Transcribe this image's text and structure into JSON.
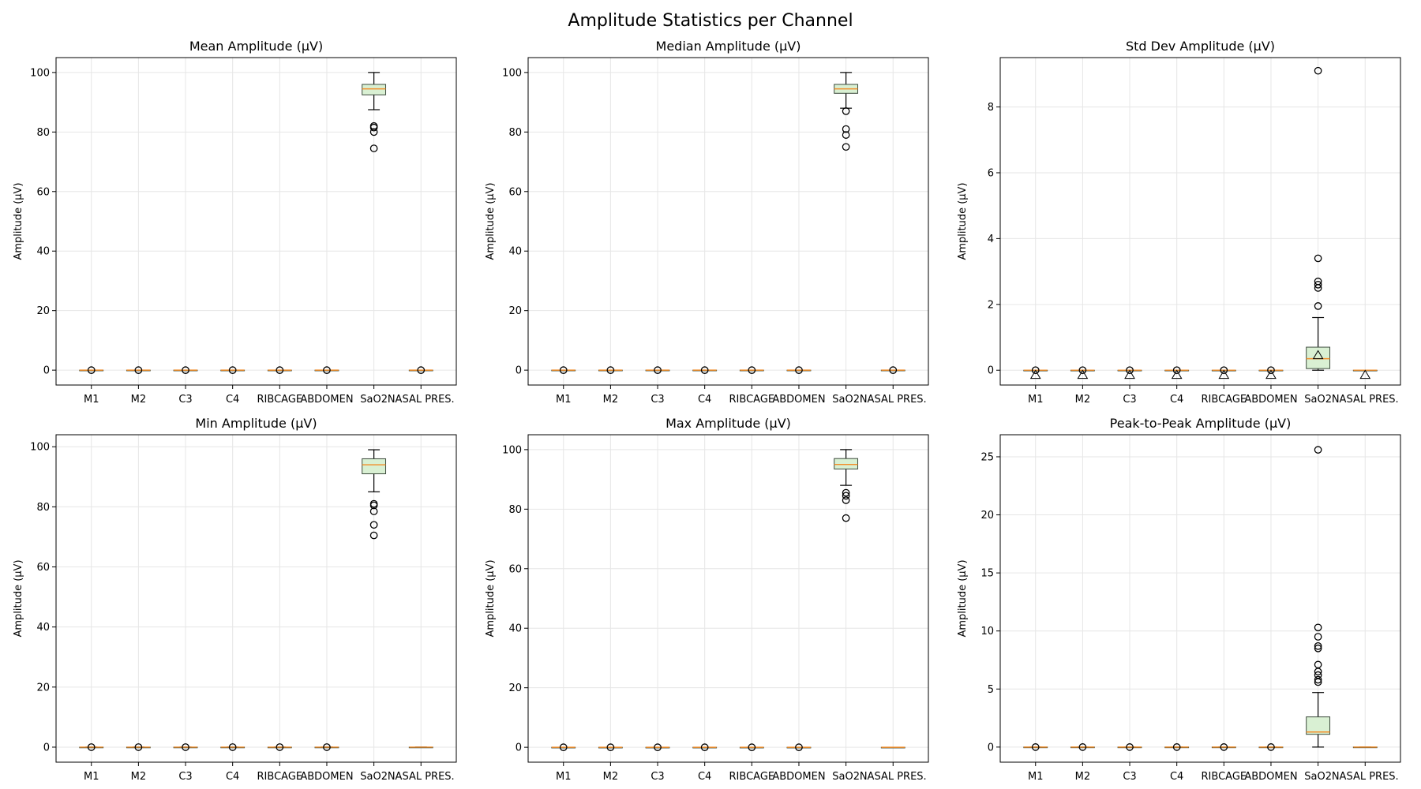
{
  "figure_title": "Amplitude Statistics per Channel",
  "colors": {
    "box_fill": "#d9f0d3",
    "box_edge": "#3b4a3b",
    "median": "#f28e2b",
    "grid": "#e6e6e6",
    "whisker": "#000000"
  },
  "chart_data": [
    {
      "type": "box",
      "title": "Mean Amplitude (µV)",
      "ylabel": "Amplitude (µV)",
      "ylim": [
        -5,
        105
      ],
      "yticks": [
        0,
        20,
        40,
        60,
        80,
        100
      ],
      "ytick_labels": [
        "0",
        "20",
        "40",
        "60",
        "80",
        "100"
      ],
      "categories": [
        "M1",
        "M2",
        "C3",
        "C4",
        "RIBCAGE",
        "ABDOMEN",
        "SaO2",
        "NASAL PRES."
      ],
      "boxes": [
        {
          "q1": 0,
          "median": 0,
          "q3": 0,
          "whislo": 0,
          "whishi": 0,
          "fliers": [
            0
          ]
        },
        {
          "q1": 0,
          "median": 0,
          "q3": 0,
          "whislo": 0,
          "whishi": 0,
          "fliers": [
            0
          ]
        },
        {
          "q1": 0,
          "median": 0,
          "q3": 0,
          "whislo": 0,
          "whishi": 0,
          "fliers": [
            0
          ]
        },
        {
          "q1": 0,
          "median": 0,
          "q3": 0,
          "whislo": 0,
          "whishi": 0,
          "fliers": [
            0
          ]
        },
        {
          "q1": 0,
          "median": 0,
          "q3": 0,
          "whislo": 0,
          "whishi": 0,
          "fliers": [
            0
          ]
        },
        {
          "q1": 0,
          "median": 0,
          "q3": 0,
          "whislo": 0,
          "whishi": 0,
          "fliers": [
            0
          ]
        },
        {
          "q1": 92.5,
          "median": 94.5,
          "q3": 96,
          "whislo": 87.5,
          "whishi": 100,
          "fliers": [
            82,
            81.5,
            80,
            74.5
          ]
        },
        {
          "q1": 0,
          "median": 0,
          "q3": 0,
          "whislo": 0,
          "whishi": 0,
          "fliers": [
            0
          ]
        }
      ]
    },
    {
      "type": "box",
      "title": "Median Amplitude (µV)",
      "ylabel": "Amplitude (µV)",
      "ylim": [
        -5,
        105
      ],
      "yticks": [
        0,
        20,
        40,
        60,
        80,
        100
      ],
      "ytick_labels": [
        "0",
        "20",
        "40",
        "60",
        "80",
        "100"
      ],
      "categories": [
        "M1",
        "M2",
        "C3",
        "C4",
        "RIBCAGE",
        "ABDOMEN",
        "SaO2",
        "NASAL PRES."
      ],
      "boxes": [
        {
          "q1": 0,
          "median": 0,
          "q3": 0,
          "whislo": 0,
          "whishi": 0,
          "fliers": [
            0
          ]
        },
        {
          "q1": 0,
          "median": 0,
          "q3": 0,
          "whislo": 0,
          "whishi": 0,
          "fliers": [
            0
          ]
        },
        {
          "q1": 0,
          "median": 0,
          "q3": 0,
          "whislo": 0,
          "whishi": 0,
          "fliers": [
            0
          ]
        },
        {
          "q1": 0,
          "median": 0,
          "q3": 0,
          "whislo": 0,
          "whishi": 0,
          "fliers": [
            0
          ]
        },
        {
          "q1": 0,
          "median": 0,
          "q3": 0,
          "whislo": 0,
          "whishi": 0,
          "fliers": [
            0
          ]
        },
        {
          "q1": 0,
          "median": 0,
          "q3": 0,
          "whislo": 0,
          "whishi": 0,
          "fliers": [
            0
          ]
        },
        {
          "q1": 93,
          "median": 94.5,
          "q3": 96,
          "whislo": 88,
          "whishi": 100,
          "fliers": [
            87,
            81,
            79,
            75
          ]
        },
        {
          "q1": 0,
          "median": 0,
          "q3": 0,
          "whislo": 0,
          "whishi": 0,
          "fliers": [
            0
          ]
        }
      ]
    },
    {
      "type": "box",
      "title": "Std Dev Amplitude (µV)",
      "ylabel": "Amplitude (µV)",
      "ylim": [
        -0.45,
        9.5
      ],
      "yticks": [
        0,
        2,
        4,
        6,
        8
      ],
      "ytick_labels": [
        "0",
        "2",
        "4",
        "6",
        "8"
      ],
      "categories": [
        "M1",
        "M2",
        "C3",
        "C4",
        "RIBCAGE",
        "ABDOMEN",
        "SaO2",
        "NASAL PRES."
      ],
      "boxes": [
        {
          "q1": 0,
          "median": 0,
          "q3": 0,
          "whislo": 0,
          "whishi": 0,
          "fliers": [
            0
          ],
          "mean": -0.15
        },
        {
          "q1": 0,
          "median": 0,
          "q3": 0,
          "whislo": 0,
          "whishi": 0,
          "fliers": [
            0
          ],
          "mean": -0.15
        },
        {
          "q1": 0,
          "median": 0,
          "q3": 0,
          "whislo": 0,
          "whishi": 0,
          "fliers": [
            0
          ],
          "mean": -0.15
        },
        {
          "q1": 0,
          "median": 0,
          "q3": 0,
          "whislo": 0,
          "whishi": 0,
          "fliers": [
            0
          ],
          "mean": -0.15
        },
        {
          "q1": 0,
          "median": 0,
          "q3": 0,
          "whislo": 0,
          "whishi": 0,
          "fliers": [
            0
          ],
          "mean": -0.15
        },
        {
          "q1": 0,
          "median": 0,
          "q3": 0,
          "whislo": 0,
          "whishi": 0,
          "fliers": [
            0
          ],
          "mean": -0.15
        },
        {
          "q1": 0.05,
          "median": 0.35,
          "q3": 0.7,
          "whislo": 0,
          "whishi": 1.6,
          "fliers": [
            9.1,
            3.4,
            2.7,
            2.6,
            2.5,
            1.95
          ],
          "mean": 0.45
        },
        {
          "q1": 0,
          "median": 0,
          "q3": 0,
          "whislo": 0,
          "whishi": 0,
          "fliers": [],
          "mean": -0.15
        }
      ]
    },
    {
      "type": "box",
      "title": "Min Amplitude (µV)",
      "ylabel": "Amplitude (µV)",
      "ylim": [
        -5,
        104
      ],
      "yticks": [
        0,
        20,
        40,
        60,
        80,
        100
      ],
      "ytick_labels": [
        "0",
        "20",
        "40",
        "60",
        "80",
        "100"
      ],
      "categories": [
        "M1",
        "M2",
        "C3",
        "C4",
        "RIBCAGE",
        "ABDOMEN",
        "SaO2",
        "NASAL PRES."
      ],
      "boxes": [
        {
          "q1": 0,
          "median": 0,
          "q3": 0,
          "whislo": 0,
          "whishi": 0,
          "fliers": [
            0
          ]
        },
        {
          "q1": 0,
          "median": 0,
          "q3": 0,
          "whislo": 0,
          "whishi": 0,
          "fliers": [
            0
          ]
        },
        {
          "q1": 0,
          "median": 0,
          "q3": 0,
          "whislo": 0,
          "whishi": 0,
          "fliers": [
            0
          ]
        },
        {
          "q1": 0,
          "median": 0,
          "q3": 0,
          "whislo": 0,
          "whishi": 0,
          "fliers": [
            0
          ]
        },
        {
          "q1": 0,
          "median": 0,
          "q3": 0,
          "whislo": 0,
          "whishi": 0,
          "fliers": [
            0
          ]
        },
        {
          "q1": 0,
          "median": 0,
          "q3": 0,
          "whislo": 0,
          "whishi": 0,
          "fliers": [
            0
          ]
        },
        {
          "q1": 91,
          "median": 94,
          "q3": 96,
          "whislo": 85,
          "whishi": 99,
          "fliers": [
            81,
            80.5,
            78.5,
            74,
            70.5
          ]
        },
        {
          "q1": 0,
          "median": 0,
          "q3": 0,
          "whislo": 0,
          "whishi": 0,
          "fliers": []
        }
      ]
    },
    {
      "type": "box",
      "title": "Max Amplitude (µV)",
      "ylabel": "Amplitude (µV)",
      "ylim": [
        -5,
        105
      ],
      "yticks": [
        0,
        20,
        40,
        60,
        80,
        100
      ],
      "ytick_labels": [
        "0",
        "20",
        "40",
        "60",
        "80",
        "100"
      ],
      "categories": [
        "M1",
        "M2",
        "C3",
        "C4",
        "RIBCAGE",
        "ABDOMEN",
        "SaO2",
        "NASAL PRES."
      ],
      "boxes": [
        {
          "q1": 0,
          "median": 0,
          "q3": 0,
          "whislo": 0,
          "whishi": 0,
          "fliers": [
            0
          ]
        },
        {
          "q1": 0,
          "median": 0,
          "q3": 0,
          "whislo": 0,
          "whishi": 0,
          "fliers": [
            0
          ]
        },
        {
          "q1": 0,
          "median": 0,
          "q3": 0,
          "whislo": 0,
          "whishi": 0,
          "fliers": [
            0
          ]
        },
        {
          "q1": 0,
          "median": 0,
          "q3": 0,
          "whislo": 0,
          "whishi": 0,
          "fliers": [
            0
          ]
        },
        {
          "q1": 0,
          "median": 0,
          "q3": 0,
          "whislo": 0,
          "whishi": 0,
          "fliers": [
            0
          ]
        },
        {
          "q1": 0,
          "median": 0,
          "q3": 0,
          "whislo": 0,
          "whishi": 0,
          "fliers": [
            0
          ]
        },
        {
          "q1": 93.5,
          "median": 95,
          "q3": 97,
          "whislo": 88,
          "whishi": 100,
          "fliers": [
            85.5,
            84.5,
            83,
            77
          ]
        },
        {
          "q1": 0,
          "median": 0,
          "q3": 0,
          "whislo": 0,
          "whishi": 0,
          "fliers": []
        }
      ]
    },
    {
      "type": "box",
      "title": "Peak-to-Peak Amplitude (µV)",
      "ylabel": "Amplitude (µV)",
      "ylim": [
        -1.3,
        26.9
      ],
      "yticks": [
        0,
        5,
        10,
        15,
        20,
        25
      ],
      "ytick_labels": [
        "0",
        "5",
        "10",
        "15",
        "20",
        "25"
      ],
      "categories": [
        "M1",
        "M2",
        "C3",
        "C4",
        "RIBCAGE",
        "ABDOMEN",
        "SaO2",
        "NASAL PRES."
      ],
      "boxes": [
        {
          "q1": 0,
          "median": 0,
          "q3": 0,
          "whislo": 0,
          "whishi": 0,
          "fliers": [
            0
          ]
        },
        {
          "q1": 0,
          "median": 0,
          "q3": 0,
          "whislo": 0,
          "whishi": 0,
          "fliers": [
            0
          ]
        },
        {
          "q1": 0,
          "median": 0,
          "q3": 0,
          "whislo": 0,
          "whishi": 0,
          "fliers": [
            0
          ]
        },
        {
          "q1": 0,
          "median": 0,
          "q3": 0,
          "whislo": 0,
          "whishi": 0,
          "fliers": [
            0
          ]
        },
        {
          "q1": 0,
          "median": 0,
          "q3": 0,
          "whislo": 0,
          "whishi": 0,
          "fliers": [
            0
          ]
        },
        {
          "q1": 0,
          "median": 0,
          "q3": 0,
          "whislo": 0,
          "whishi": 0,
          "fliers": [
            0
          ]
        },
        {
          "q1": 1.1,
          "median": 1.3,
          "q3": 2.6,
          "whislo": 0,
          "whishi": 4.7,
          "fliers": [
            25.6,
            10.3,
            9.5,
            8.7,
            8.5,
            7.1,
            6.5,
            6.2,
            5.8,
            5.6
          ]
        },
        {
          "q1": 0,
          "median": 0,
          "q3": 0,
          "whislo": 0,
          "whishi": 0,
          "fliers": []
        }
      ]
    }
  ]
}
